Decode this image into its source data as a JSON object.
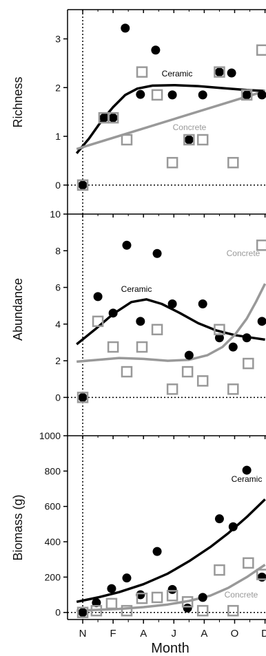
{
  "chart_data": [
    {
      "type": "scatter",
      "ylabel": "Richness",
      "ylim": [
        -0.2,
        3.6
      ],
      "yticks": [
        0,
        1,
        2,
        3
      ],
      "series": [
        {
          "name": "Ceramic",
          "marker": "filled-circle",
          "color": "#000000",
          "x": [
            0,
            0.7,
            1.0,
            1.4,
            1.9,
            2.4,
            2.95,
            3.5,
            3.95,
            4.5,
            4.9,
            5.4,
            5.9
          ],
          "y": [
            0,
            1.38,
            1.38,
            3.22,
            1.86,
            2.77,
            1.85,
            0.93,
            1.85,
            2.32,
            2.3,
            1.85,
            1.85
          ]
        },
        {
          "name": "Concrete",
          "marker": "open-square",
          "color": "#999999",
          "x": [
            0,
            0.7,
            1.0,
            1.45,
            1.95,
            2.45,
            2.95,
            3.5,
            3.95,
            4.5,
            4.95,
            5.4,
            5.9
          ],
          "y": [
            0,
            1.38,
            1.38,
            0.93,
            2.32,
            1.85,
            0.46,
            0.93,
            0.93,
            2.32,
            0.46,
            1.85,
            2.77
          ]
        }
      ],
      "fits": [
        {
          "label": "Ceramic",
          "color": "#000000",
          "x": [
            -0.2,
            0.2,
            0.6,
            1.0,
            1.4,
            1.8,
            2.3,
            3.0,
            3.8,
            4.6,
            5.4,
            6.0
          ],
          "y": [
            0.65,
            0.95,
            1.3,
            1.6,
            1.85,
            1.98,
            2.04,
            2.05,
            2.03,
            1.99,
            1.95,
            1.93
          ]
        },
        {
          "label": "Concrete",
          "color": "#999999",
          "x": [
            -0.2,
            6.0
          ],
          "y": [
            0.74,
            1.93
          ]
        }
      ]
    },
    {
      "type": "scatter",
      "ylabel": "Abundance",
      "ylim": [
        -0.4,
        10
      ],
      "yticks": [
        0,
        2,
        4,
        6,
        8,
        10
      ],
      "series": [
        {
          "name": "Ceramic",
          "marker": "filled-circle",
          "color": "#000000",
          "x": [
            0,
            0.5,
            1.0,
            1.45,
            1.9,
            2.45,
            2.95,
            3.5,
            3.95,
            4.5,
            4.95,
            5.4,
            5.9
          ],
          "y": [
            0,
            5.5,
            4.6,
            8.3,
            4.15,
            7.85,
            5.1,
            2.3,
            5.1,
            3.25,
            2.75,
            3.25,
            4.15
          ]
        },
        {
          "name": "Concrete",
          "marker": "open-square",
          "color": "#999999",
          "x": [
            0,
            0.5,
            1.0,
            1.45,
            1.95,
            2.45,
            2.95,
            3.45,
            3.95,
            4.5,
            4.95,
            5.45,
            5.9
          ],
          "y": [
            0,
            4.15,
            2.75,
            1.4,
            2.75,
            3.7,
            0.45,
            1.4,
            0.9,
            3.7,
            0.45,
            1.85,
            8.3
          ]
        }
      ],
      "fits": [
        {
          "label": "Ceramic",
          "color": "#000000",
          "x": [
            -0.2,
            0.4,
            1.0,
            1.6,
            2.1,
            2.6,
            3.2,
            3.8,
            4.4,
            5.0,
            5.6,
            6.0
          ],
          "y": [
            2.9,
            3.7,
            4.55,
            5.2,
            5.35,
            5.1,
            4.6,
            4.05,
            3.65,
            3.4,
            3.25,
            3.15
          ]
        },
        {
          "label": "Concrete",
          "color": "#999999",
          "x": [
            -0.2,
            0.5,
            1.2,
            2.0,
            2.8,
            3.5,
            4.1,
            4.6,
            5.0,
            5.4,
            5.7,
            6.0
          ],
          "y": [
            1.95,
            2.05,
            2.15,
            2.1,
            2.0,
            2.05,
            2.3,
            2.75,
            3.4,
            4.3,
            5.2,
            6.2
          ]
        }
      ]
    },
    {
      "type": "scatter",
      "ylabel": "Biomass (g)",
      "xlabel": "Month",
      "ylim": [
        -40,
        1000
      ],
      "yticks": [
        0,
        200,
        400,
        600,
        800,
        1000
      ],
      "xticks": [
        "N",
        "F",
        "A",
        "J",
        "A",
        "O",
        "D"
      ],
      "series": [
        {
          "name": "Ceramic",
          "marker": "filled-circle",
          "color": "#000000",
          "x": [
            0,
            0.45,
            0.95,
            1.45,
            1.9,
            2.45,
            2.95,
            3.45,
            3.95,
            4.5,
            4.95,
            5.4,
            5.9
          ],
          "y": [
            0,
            55,
            135,
            195,
            100,
            345,
            130,
            25,
            85,
            530,
            485,
            805,
            200
          ]
        },
        {
          "name": "Concrete",
          "marker": "open-square",
          "color": "#999999",
          "x": [
            0,
            0.45,
            0.95,
            1.45,
            1.95,
            2.45,
            2.95,
            3.45,
            3.95,
            4.5,
            4.95,
            5.45,
            5.9
          ],
          "y": [
            0,
            10,
            50,
            10,
            80,
            85,
            95,
            60,
            10,
            240,
            10,
            280,
            215
          ]
        }
      ],
      "fits": [
        {
          "label": "Ceramic",
          "color": "#000000",
          "x": [
            -0.2,
            0.5,
            1.2,
            2.0,
            2.8,
            3.5,
            4.2,
            4.8,
            5.4,
            6.0
          ],
          "y": [
            60,
            85,
            115,
            160,
            220,
            290,
            370,
            450,
            540,
            640
          ]
        },
        {
          "label": "Concrete",
          "color": "#999999",
          "x": [
            -0.2,
            0.5,
            1.2,
            2.0,
            2.8,
            3.5,
            4.2,
            4.8,
            5.4,
            6.0
          ],
          "y": [
            10,
            15,
            20,
            30,
            45,
            65,
            95,
            140,
            200,
            270
          ]
        }
      ]
    }
  ]
}
